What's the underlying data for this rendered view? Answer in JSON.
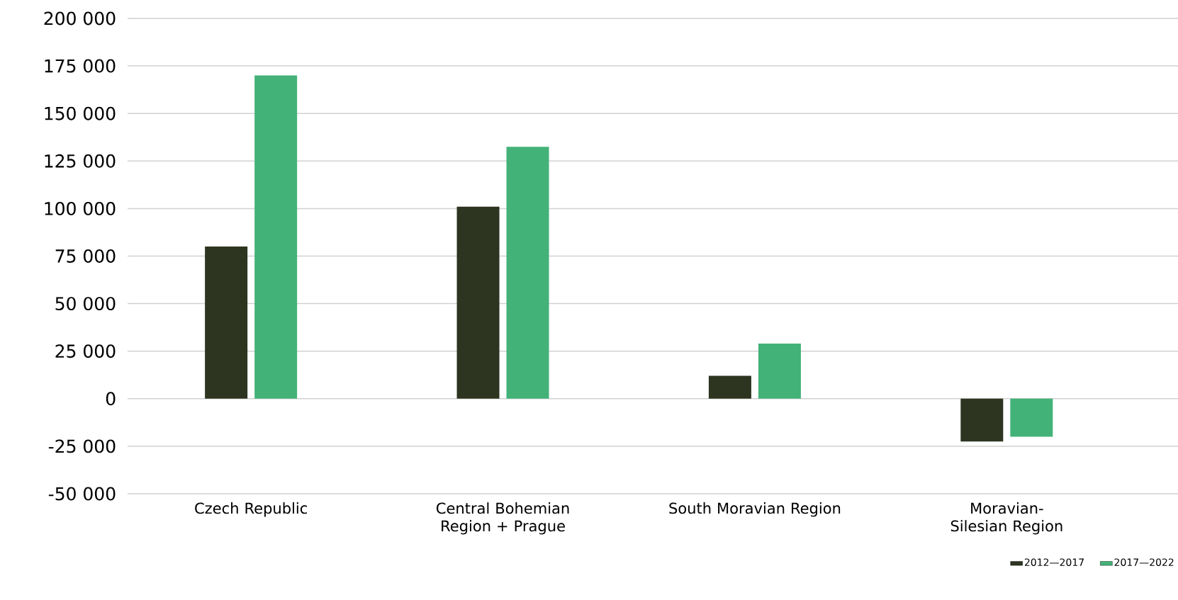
{
  "chart_data": {
    "type": "bar",
    "categories": [
      "Czech Republic",
      "Central Bohemian Region + Prague",
      "South Moravian Region",
      "Moravian-Silesian Region"
    ],
    "series": [
      {
        "name": "2012—2017",
        "color": "#2d3520",
        "values": [
          80000,
          101000,
          12000,
          -22500
        ]
      },
      {
        "name": "2017—2022",
        "color": "#43b278",
        "values": [
          170000,
          132500,
          29000,
          -20000
        ]
      }
    ],
    "ylim": [
      -50000,
      200000
    ],
    "yticks": [
      {
        "value": -50000,
        "label": "-50 000"
      },
      {
        "value": -25000,
        "label": "-25 000"
      },
      {
        "value": 0,
        "label": "0"
      },
      {
        "value": 25000,
        "label": "25 000"
      },
      {
        "value": 50000,
        "label": "50 000"
      },
      {
        "value": 75000,
        "label": "75 000"
      },
      {
        "value": 100000,
        "label": "100 000"
      },
      {
        "value": 125000,
        "label": "125 000"
      },
      {
        "value": 150000,
        "label": "150 000"
      },
      {
        "value": 175000,
        "label": "175 000"
      },
      {
        "value": 200000,
        "label": "200 000"
      }
    ],
    "grid": "y",
    "legend": "bottom right"
  }
}
